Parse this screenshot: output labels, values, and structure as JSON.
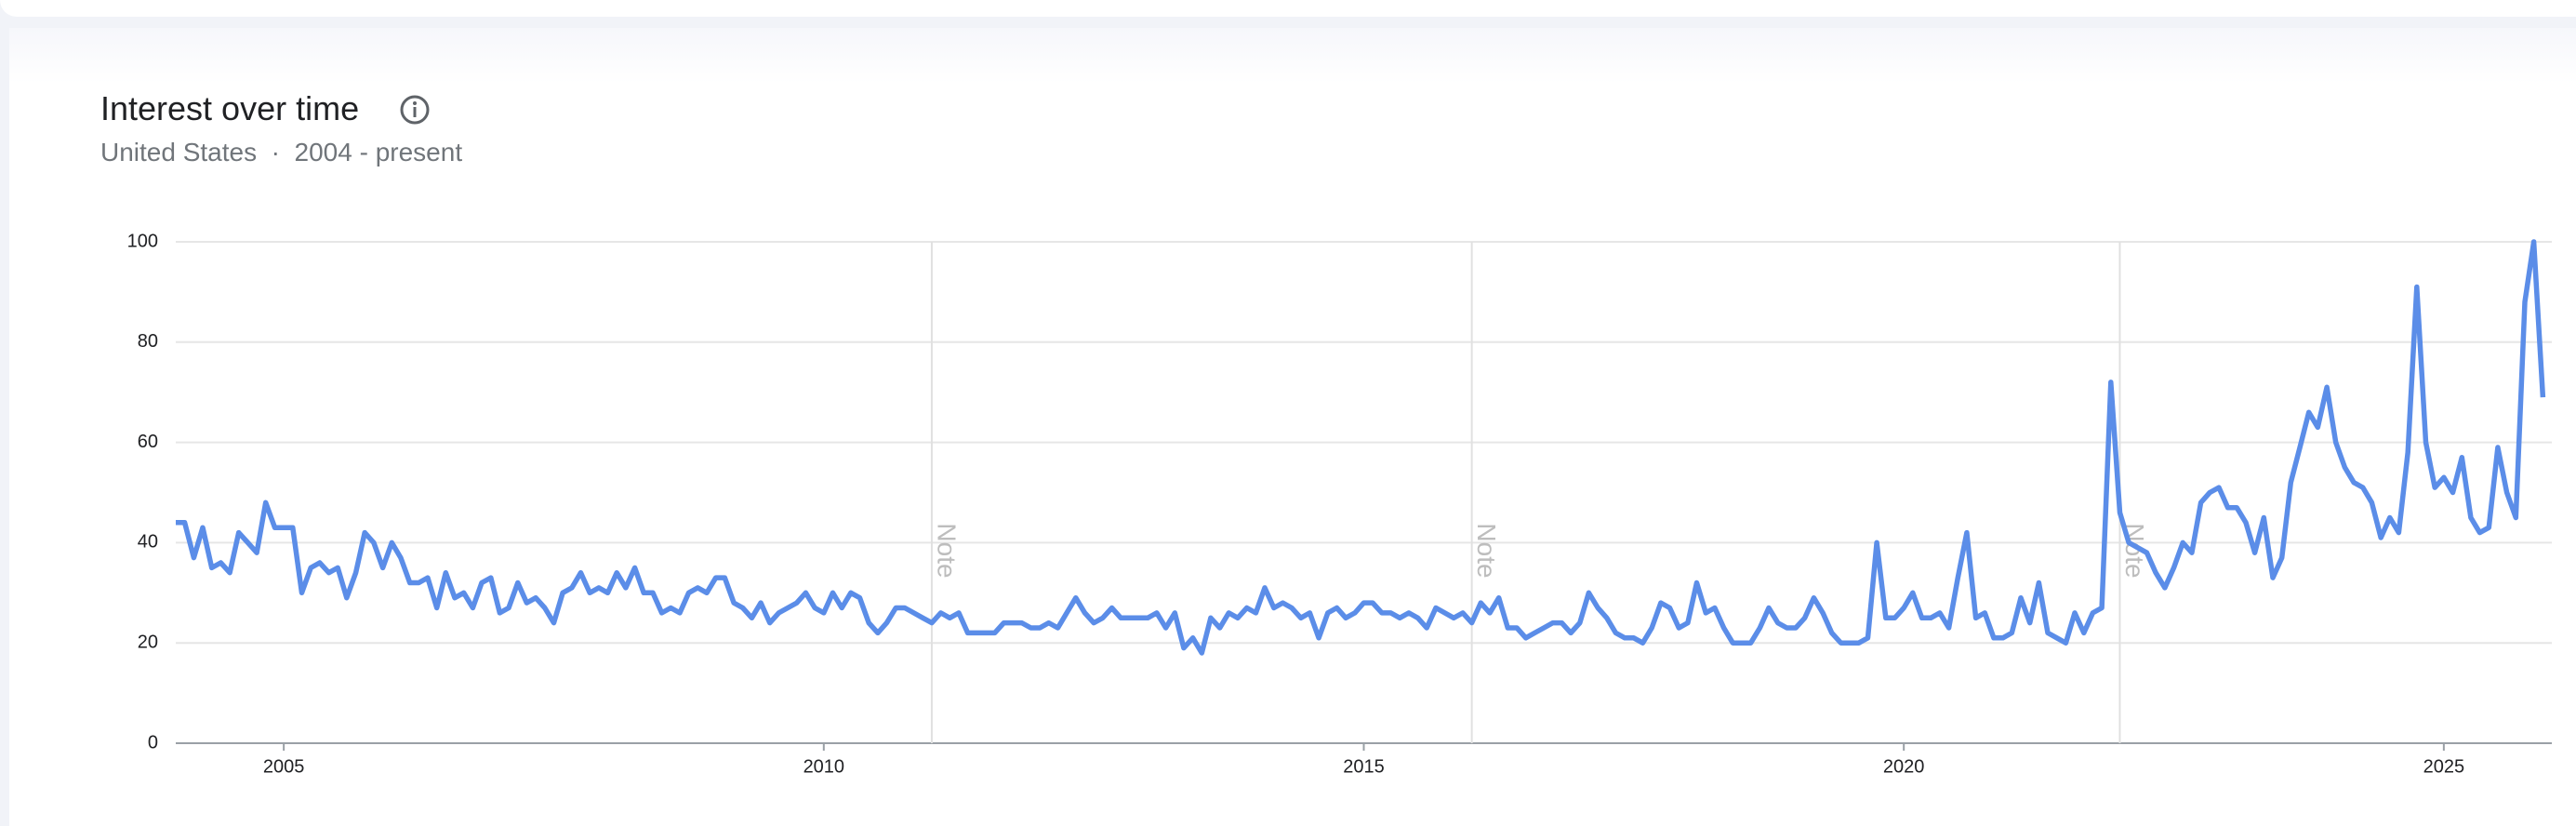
{
  "header": {
    "title": "Interest over time",
    "subtitle": "United States  ·  2004 - present"
  },
  "chart_data": {
    "type": "line",
    "xlim": [
      2004,
      2026
    ],
    "ylim": [
      0,
      100
    ],
    "xticks": [
      2005,
      2010,
      2015,
      2020,
      2025
    ],
    "yticks": [
      0,
      20,
      40,
      60,
      80,
      100
    ],
    "grid": true,
    "notes": [
      {
        "x": 2011,
        "label": "Note"
      },
      {
        "x": 2016,
        "label": "Note"
      },
      {
        "x": 2022,
        "label": "Note"
      }
    ],
    "x": [
      2004,
      2004.083,
      2004.167,
      2004.25,
      2004.333,
      2004.417,
      2004.5,
      2004.583,
      2004.667,
      2004.75,
      2004.833,
      2004.917,
      2005,
      2005.083,
      2005.167,
      2005.25,
      2005.333,
      2005.417,
      2005.5,
      2005.583,
      2005.667,
      2005.75,
      2005.833,
      2005.917,
      2006,
      2006.083,
      2006.167,
      2006.25,
      2006.333,
      2006.417,
      2006.5,
      2006.583,
      2006.667,
      2006.75,
      2006.833,
      2006.917,
      2007,
      2007.083,
      2007.167,
      2007.25,
      2007.333,
      2007.417,
      2007.5,
      2007.583,
      2007.667,
      2007.75,
      2007.833,
      2007.917,
      2008,
      2008.083,
      2008.167,
      2008.25,
      2008.333,
      2008.417,
      2008.5,
      2008.583,
      2008.667,
      2008.75,
      2008.833,
      2008.917,
      2009,
      2009.083,
      2009.167,
      2009.25,
      2009.333,
      2009.417,
      2009.5,
      2009.583,
      2009.667,
      2009.75,
      2009.833,
      2009.917,
      2010,
      2010.083,
      2010.167,
      2010.25,
      2010.333,
      2010.417,
      2010.5,
      2010.583,
      2010.667,
      2010.75,
      2010.833,
      2010.917,
      2011,
      2011.083,
      2011.167,
      2011.25,
      2011.333,
      2011.417,
      2011.5,
      2011.583,
      2011.667,
      2011.75,
      2011.833,
      2011.917,
      2012,
      2012.083,
      2012.167,
      2012.25,
      2012.333,
      2012.417,
      2012.5,
      2012.583,
      2012.667,
      2012.75,
      2012.833,
      2012.917,
      2013,
      2013.083,
      2013.167,
      2013.25,
      2013.333,
      2013.417,
      2013.5,
      2013.583,
      2013.667,
      2013.75,
      2013.833,
      2013.917,
      2014,
      2014.083,
      2014.167,
      2014.25,
      2014.333,
      2014.417,
      2014.5,
      2014.583,
      2014.667,
      2014.75,
      2014.833,
      2014.917,
      2015,
      2015.083,
      2015.167,
      2015.25,
      2015.333,
      2015.417,
      2015.5,
      2015.583,
      2015.667,
      2015.75,
      2015.833,
      2015.917,
      2016,
      2016.083,
      2016.167,
      2016.25,
      2016.333,
      2016.417,
      2016.5,
      2016.583,
      2016.667,
      2016.75,
      2016.833,
      2016.917,
      2017,
      2017.083,
      2017.167,
      2017.25,
      2017.333,
      2017.417,
      2017.5,
      2017.583,
      2017.667,
      2017.75,
      2017.833,
      2017.917,
      2018,
      2018.083,
      2018.167,
      2018.25,
      2018.333,
      2018.417,
      2018.5,
      2018.583,
      2018.667,
      2018.75,
      2018.833,
      2018.917,
      2019,
      2019.083,
      2019.167,
      2019.25,
      2019.333,
      2019.417,
      2019.5,
      2019.583,
      2019.667,
      2019.75,
      2019.833,
      2019.917,
      2020,
      2020.083,
      2020.167,
      2020.25,
      2020.333,
      2020.417,
      2020.5,
      2020.583,
      2020.667,
      2020.75,
      2020.833,
      2020.917,
      2021,
      2021.083,
      2021.167,
      2021.25,
      2021.333,
      2021.417,
      2021.5,
      2021.583,
      2021.667,
      2021.75,
      2021.833,
      2021.917,
      2022,
      2022.083,
      2022.167,
      2022.25,
      2022.333,
      2022.417,
      2022.5,
      2022.583,
      2022.667,
      2022.75,
      2022.833,
      2022.917,
      2023,
      2023.083,
      2023.167,
      2023.25,
      2023.333,
      2023.417,
      2023.5,
      2023.583,
      2023.667,
      2023.75,
      2023.833,
      2023.917,
      2024,
      2024.083,
      2024.167,
      2024.25,
      2024.333,
      2024.417,
      2024.5,
      2024.583,
      2024.667,
      2024.75,
      2024.833,
      2024.917,
      2025,
      2025.083,
      2025.167,
      2025.25,
      2025.333,
      2025.417,
      2025.5,
      2025.583,
      2025.667,
      2025.75,
      2025.833,
      2025.917
    ],
    "series": [
      {
        "color": "#5b8de8",
        "values": [
          44,
          44,
          37,
          43,
          35,
          36,
          34,
          42,
          40,
          38,
          48,
          43,
          43,
          43,
          30,
          35,
          36,
          34,
          35,
          29,
          34,
          42,
          40,
          35,
          40,
          37,
          32,
          32,
          33,
          27,
          34,
          29,
          30,
          27,
          32,
          33,
          26,
          27,
          32,
          28,
          29,
          27,
          24,
          30,
          31,
          34,
          30,
          31,
          30,
          34,
          31,
          35,
          30,
          30,
          26,
          27,
          26,
          30,
          31,
          30,
          33,
          33,
          28,
          27,
          25,
          28,
          24,
          26,
          27,
          28,
          30,
          27,
          26,
          30,
          27,
          30,
          29,
          24,
          22,
          24,
          27,
          27,
          26,
          25,
          24,
          26,
          25,
          26,
          22,
          22,
          22,
          22,
          24,
          24,
          24,
          23,
          23,
          24,
          23,
          26,
          29,
          26,
          24,
          25,
          27,
          25,
          25,
          25,
          25,
          26,
          23,
          26,
          19,
          21,
          18,
          25,
          23,
          26,
          25,
          27,
          26,
          31,
          27,
          28,
          27,
          25,
          26,
          21,
          26,
          27,
          25,
          26,
          28,
          28,
          26,
          26,
          25,
          26,
          25,
          23,
          27,
          26,
          25,
          26,
          24,
          28,
          26,
          29,
          23,
          23,
          21,
          22,
          23,
          24,
          24,
          22,
          24,
          30,
          27,
          25,
          22,
          21,
          21,
          20,
          23,
          28,
          27,
          23,
          24,
          32,
          26,
          27,
          23,
          20,
          20,
          20,
          23,
          27,
          24,
          23,
          23,
          25,
          29,
          26,
          22,
          20,
          20,
          20,
          21,
          40,
          25,
          25,
          27,
          30,
          25,
          25,
          26,
          23,
          33,
          42,
          25,
          26,
          21,
          21,
          22,
          29,
          24,
          32,
          22,
          21,
          20,
          26,
          22,
          26,
          27,
          72,
          46,
          40,
          39,
          38,
          34,
          31,
          35,
          40,
          38,
          48,
          50,
          51,
          47,
          47,
          44,
          38,
          45,
          33,
          37,
          52,
          59,
          66,
          63,
          71,
          60,
          55,
          52,
          51,
          48,
          41,
          45,
          42,
          58,
          91,
          60,
          51,
          53,
          50,
          57,
          45,
          42,
          43,
          59,
          50,
          45,
          88,
          100,
          69
        ]
      }
    ]
  }
}
